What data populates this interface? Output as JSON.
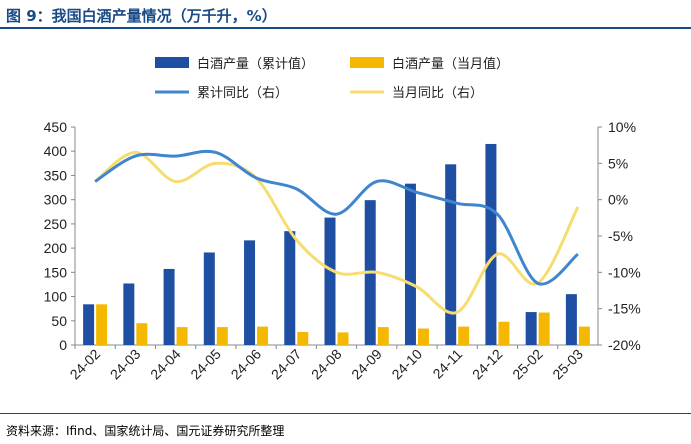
{
  "header": {
    "title": "图 9：我国白酒产量情况（万千升，%）"
  },
  "footer": {
    "source": "资料来源：Ifind、国家统计局、国元证券研究所整理"
  },
  "colors": {
    "bar_cumulative": "#1f4fa3",
    "bar_monthly": "#f5b800",
    "line_cumulative_yoy": "#3f86cf",
    "line_monthly_yoy": "#f7dc6f",
    "title": "#1a4a86"
  },
  "chart_data": {
    "type": "bar",
    "categories": [
      "24-02",
      "24-03",
      "24-04",
      "24-05",
      "24-06",
      "24-07",
      "24-08",
      "24-09",
      "24-10",
      "24-11",
      "24-12",
      "25-02",
      "25-03"
    ],
    "series": [
      {
        "name": "白酒产量（累计值）",
        "type": "bar",
        "axis": "left",
        "values": [
          84,
          127,
          157,
          191,
          216,
          235,
          263,
          299,
          333,
          373,
          415,
          68,
          105
        ]
      },
      {
        "name": "白酒产量（当月值）",
        "type": "bar",
        "axis": "left",
        "values": [
          84,
          45,
          37,
          37,
          38,
          27,
          26,
          37,
          34,
          38,
          48,
          67,
          38
        ]
      },
      {
        "name": "累计同比（右）",
        "type": "line",
        "axis": "right",
        "values": [
          2.5,
          6.0,
          6.0,
          6.5,
          3.0,
          1.5,
          -2.0,
          2.5,
          1.0,
          -0.5,
          -2.0,
          -11.5,
          -7.5
        ]
      },
      {
        "name": "当月同比（右）",
        "type": "line",
        "axis": "right",
        "values": [
          2.5,
          6.5,
          2.5,
          5.0,
          3.0,
          -5.5,
          -10.0,
          -10.0,
          -12.0,
          -15.5,
          -7.5,
          -11.5,
          -1.0
        ]
      }
    ],
    "y_left": {
      "min": 0,
      "max": 450,
      "ticks": [
        0,
        50,
        100,
        150,
        200,
        250,
        300,
        350,
        400,
        450
      ]
    },
    "y_right": {
      "min": -20,
      "max": 10,
      "ticks": [
        "-20%",
        "-15%",
        "-10%",
        "-5%",
        "0%",
        "5%",
        "10%"
      ]
    },
    "legend_position": "top",
    "grid": false
  }
}
